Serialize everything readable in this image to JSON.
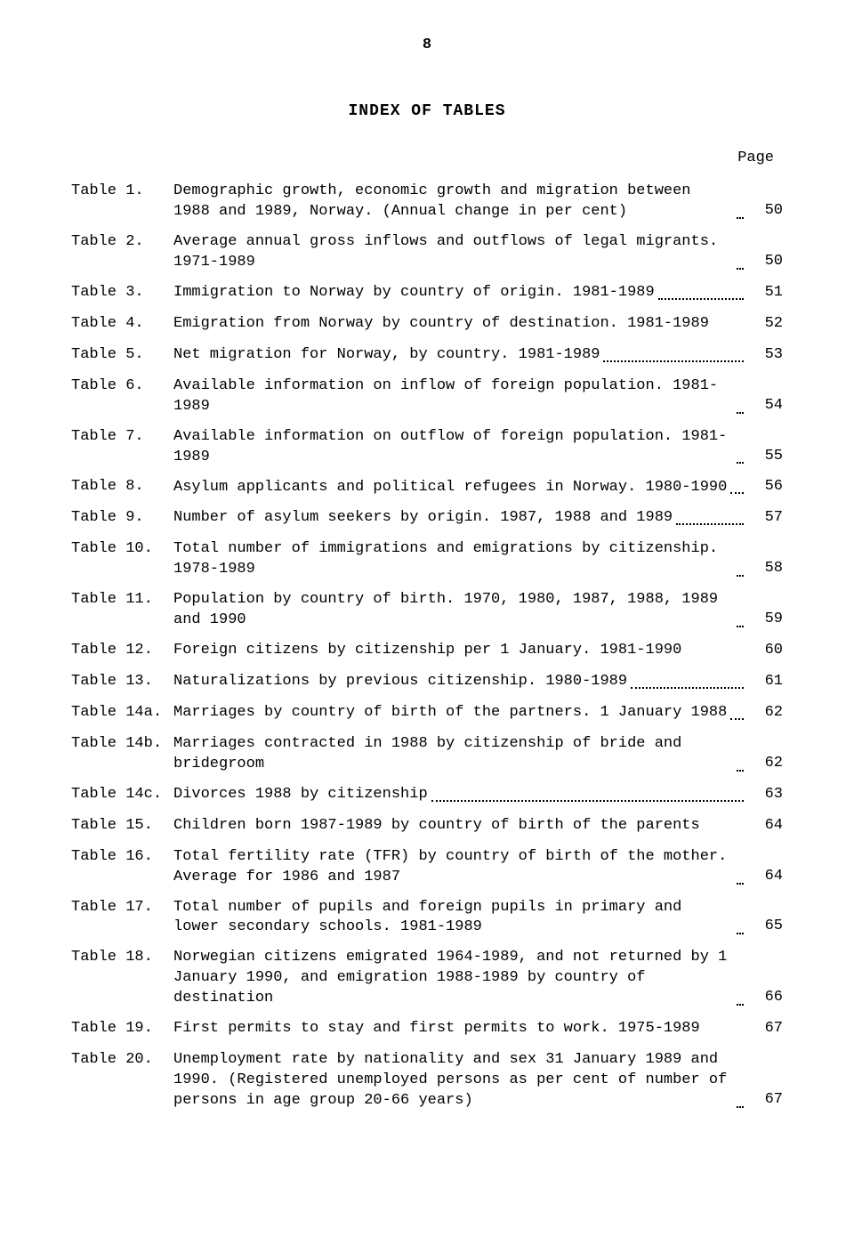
{
  "page_number": "8",
  "title": "INDEX OF TABLES",
  "page_label": "Page",
  "entries": [
    {
      "label": "Table 1.",
      "desc": "Demographic growth, economic growth and migration between 1988 and 1989, Norway. (Annual change in per cent)",
      "page": "50",
      "dots": true
    },
    {
      "label": "Table 2.",
      "desc": "Average annual gross inflows and outflows of legal migrants. 1971-1989",
      "page": "50",
      "dots": true
    },
    {
      "label": "Table 3.",
      "desc": "Immigration to Norway by country of origin. 1981-1989",
      "page": "51",
      "dots": true
    },
    {
      "label": "Table 4.",
      "desc": "Emigration from Norway by country of destination. 1981-1989",
      "page": "52",
      "dots": false
    },
    {
      "label": "Table 5.",
      "desc": "Net migration for Norway, by country. 1981-1989",
      "page": "53",
      "dots": true
    },
    {
      "label": "Table 6.",
      "desc": "Available information on inflow of foreign population. 1981-1989",
      "page": "54",
      "dots": true
    },
    {
      "label": "Table 7.",
      "desc": "Available information on outflow of foreign population. 1981-1989",
      "page": "55",
      "dots": true
    },
    {
      "label": "Table 8.",
      "desc": "Asylum applicants and political refugees in Norway. 1980-1990",
      "page": "56",
      "dots": true
    },
    {
      "label": "Table 9.",
      "desc": "Number of asylum seekers by origin. 1987, 1988 and 1989",
      "page": "57",
      "dots": true
    },
    {
      "label": "Table 10.",
      "desc": "Total number of immigrations and emigrations by citizenship. 1978-1989",
      "page": "58",
      "dots": true
    },
    {
      "label": "Table 11.",
      "desc": "Population by country of birth. 1970, 1980, 1987, 1988, 1989 and 1990",
      "page": "59",
      "dots": true
    },
    {
      "label": "Table 12.",
      "desc": "Foreign citizens by citizenship per 1 January. 1981-1990",
      "page": "60",
      "dots": false
    },
    {
      "label": "Table 13.",
      "desc": "Naturalizations by previous citizenship. 1980-1989",
      "page": "61",
      "dots": true
    },
    {
      "label": "Table 14a.",
      "desc": "Marriages by country of birth of the partners. 1 January 1988",
      "page": "62",
      "dots": true
    },
    {
      "label": "Table 14b.",
      "desc": "Marriages contracted in 1988 by citizenship of bride and bridegroom",
      "page": "62",
      "dots": true
    },
    {
      "label": "Table 14c.",
      "desc": "Divorces 1988 by citizenship",
      "page": "63",
      "dots": true
    },
    {
      "label": "Table 15.",
      "desc": "Children born 1987-1989 by country of birth of the parents",
      "page": "64",
      "dots": false
    },
    {
      "label": "Table 16.",
      "desc": "Total fertility rate (TFR) by country of birth of the mother. Average for 1986 and 1987",
      "page": "64",
      "dots": true
    },
    {
      "label": "Table 17.",
      "desc": "Total number of pupils and foreign pupils in primary and lower secondary schools. 1981-1989",
      "page": "65",
      "dots": true
    },
    {
      "label": "Table 18.",
      "desc": "Norwegian citizens emigrated 1964-1989, and not returned by 1 January 1990, and emigration 1988-1989 by country of destination",
      "page": "66",
      "dots": true
    },
    {
      "label": "Table 19.",
      "desc": "First permits to stay and first permits to work. 1975-1989",
      "page": "67",
      "dots": false
    },
    {
      "label": "Table 20.",
      "desc": "Unemployment rate by nationality and sex 31 January 1989 and 1990. (Registered unemployed persons as per cent of number of persons in age group 20-66 years)",
      "page": "67",
      "dots": true
    }
  ]
}
